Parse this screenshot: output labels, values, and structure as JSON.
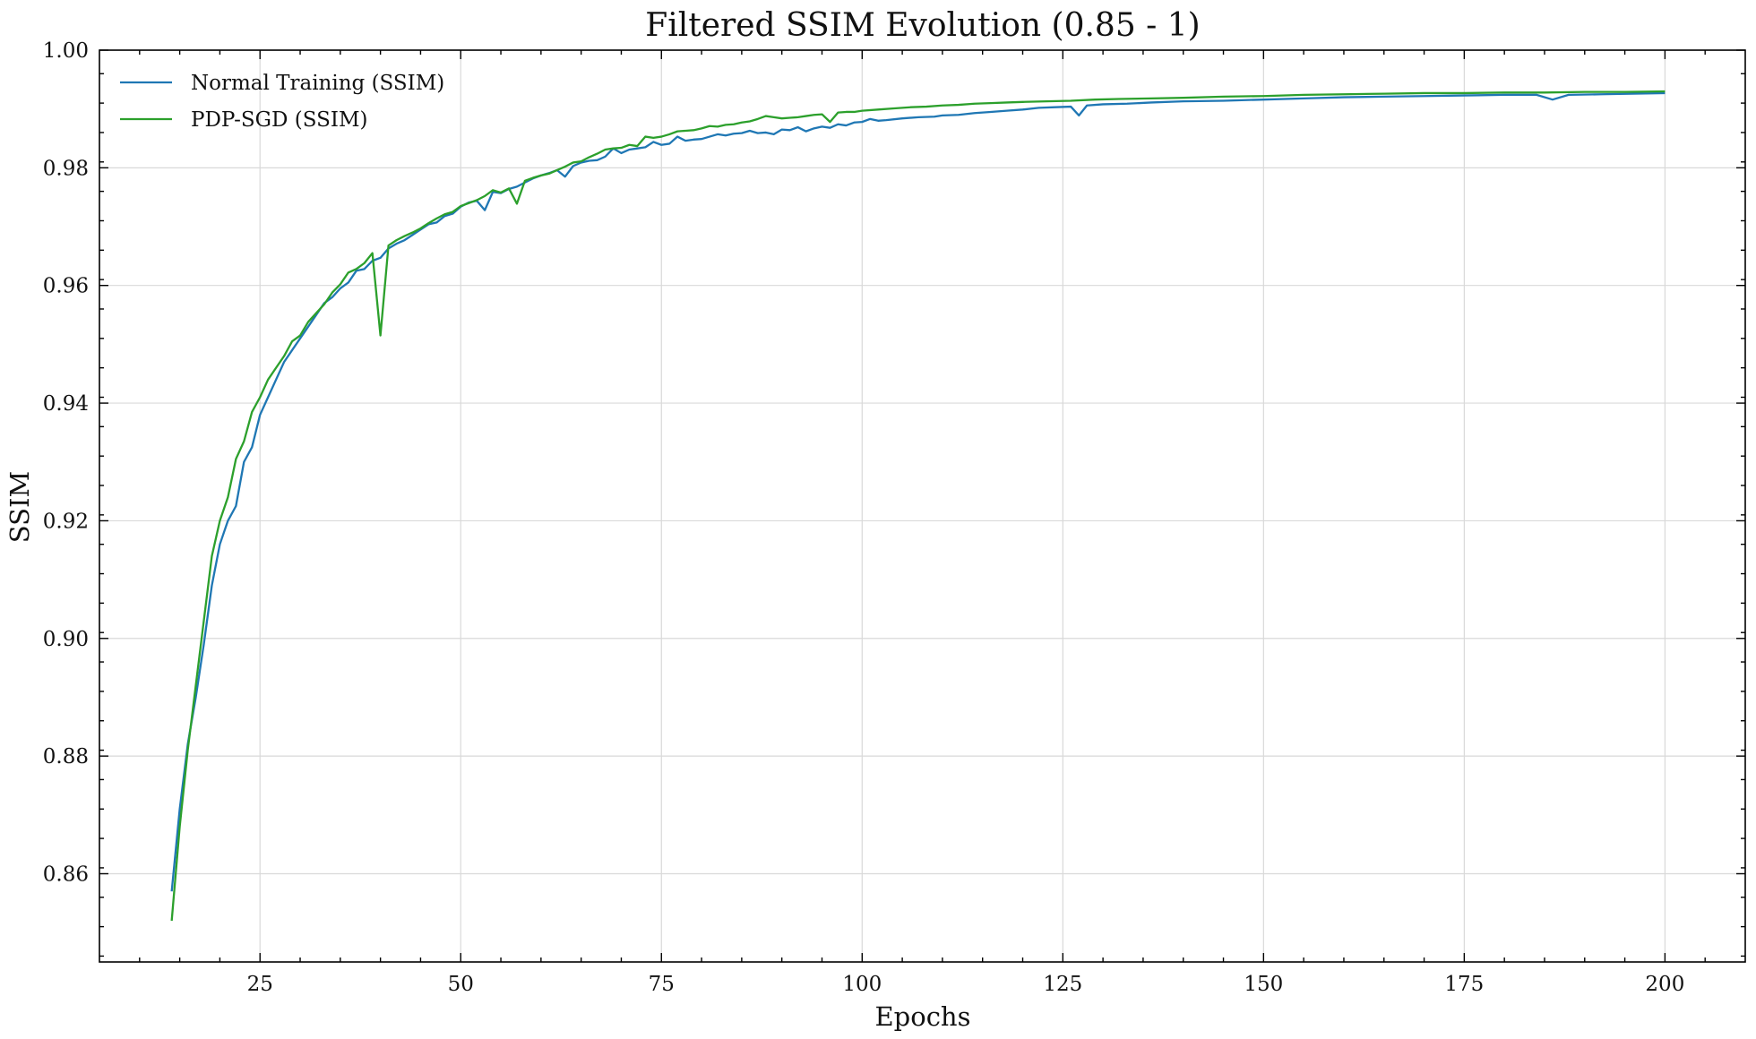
{
  "chart_data": {
    "type": "line",
    "title": "Filtered SSIM Evolution (0.85 - 1)",
    "xlabel": "Epochs",
    "ylabel": "SSIM",
    "xlim": [
      5,
      210
    ],
    "ylim": [
      0.845,
      1.0
    ],
    "xticks": [
      25,
      50,
      75,
      100,
      125,
      150,
      175,
      200
    ],
    "yticks": [
      0.86,
      0.88,
      0.9,
      0.92,
      0.94,
      0.96,
      0.98,
      1.0
    ],
    "xtick_labels": [
      "25",
      "50",
      "75",
      "100",
      "125",
      "150",
      "175",
      "200"
    ],
    "ytick_labels": [
      "0.86",
      "0.88",
      "0.90",
      "0.92",
      "0.94",
      "0.96",
      "0.98",
      "1.00"
    ],
    "grid": true,
    "legend_position": "top-left",
    "series": [
      {
        "name": "Normal Training (SSIM)",
        "color": "#1f77b4",
        "points": [
          [
            14,
            0.857
          ],
          [
            15,
            0.871
          ],
          [
            16,
            0.882
          ],
          [
            17,
            0.89
          ],
          [
            18,
            0.899
          ],
          [
            19,
            0.909
          ],
          [
            20,
            0.916
          ],
          [
            21,
            0.92
          ],
          [
            22,
            0.9225
          ],
          [
            23,
            0.93
          ],
          [
            24,
            0.9325
          ],
          [
            25,
            0.938
          ],
          [
            26,
            0.941
          ],
          [
            27,
            0.944
          ],
          [
            28,
            0.947
          ],
          [
            29,
            0.949
          ],
          [
            30,
            0.951
          ],
          [
            31,
            0.953
          ],
          [
            32,
            0.955
          ],
          [
            33,
            0.957
          ],
          [
            34,
            0.958
          ],
          [
            35,
            0.9595
          ],
          [
            36,
            0.9605
          ],
          [
            37,
            0.9625
          ],
          [
            38,
            0.9628
          ],
          [
            39,
            0.9642
          ],
          [
            40,
            0.9647
          ],
          [
            41,
            0.9663
          ],
          [
            42,
            0.9671
          ],
          [
            43,
            0.9677
          ],
          [
            44,
            0.9686
          ],
          [
            45,
            0.9695
          ],
          [
            46,
            0.9704
          ],
          [
            47,
            0.9707
          ],
          [
            48,
            0.9718
          ],
          [
            49,
            0.9722
          ],
          [
            50,
            0.9734
          ],
          [
            51,
            0.9741
          ],
          [
            52,
            0.9744
          ],
          [
            53,
            0.9728
          ],
          [
            54,
            0.9759
          ],
          [
            55,
            0.9757
          ],
          [
            56,
            0.9764
          ],
          [
            57,
            0.9768
          ],
          [
            58,
            0.9775
          ],
          [
            59,
            0.9782
          ],
          [
            60,
            0.9787
          ],
          [
            61,
            0.9791
          ],
          [
            62,
            0.9796
          ],
          [
            63,
            0.9785
          ],
          [
            64,
            0.9803
          ],
          [
            65,
            0.9809
          ],
          [
            66,
            0.9812
          ],
          [
            67,
            0.9813
          ],
          [
            68,
            0.9819
          ],
          [
            69,
            0.9833
          ],
          [
            70,
            0.9825
          ],
          [
            71,
            0.9831
          ],
          [
            72,
            0.9833
          ],
          [
            73,
            0.9835
          ],
          [
            74,
            0.9844
          ],
          [
            75,
            0.9839
          ],
          [
            76,
            0.9841
          ],
          [
            77,
            0.9853
          ],
          [
            78,
            0.9846
          ],
          [
            79,
            0.9848
          ],
          [
            80,
            0.9849
          ],
          [
            81,
            0.9853
          ],
          [
            82,
            0.9857
          ],
          [
            83,
            0.9855
          ],
          [
            84,
            0.9858
          ],
          [
            85,
            0.9859
          ],
          [
            86,
            0.9863
          ],
          [
            87,
            0.9859
          ],
          [
            88,
            0.986
          ],
          [
            89,
            0.9857
          ],
          [
            90,
            0.9865
          ],
          [
            91,
            0.9864
          ],
          [
            92,
            0.9869
          ],
          [
            93,
            0.9862
          ],
          [
            94,
            0.9867
          ],
          [
            95,
            0.987
          ],
          [
            96,
            0.9868
          ],
          [
            97,
            0.9874
          ],
          [
            98,
            0.9872
          ],
          [
            99,
            0.9877
          ],
          [
            100,
            0.9878
          ],
          [
            101,
            0.9883
          ],
          [
            102,
            0.988
          ],
          [
            103,
            0.9881
          ],
          [
            105,
            0.9884
          ],
          [
            107,
            0.9886
          ],
          [
            109,
            0.9887
          ],
          [
            110,
            0.9889
          ],
          [
            112,
            0.989
          ],
          [
            114,
            0.9893
          ],
          [
            116,
            0.9895
          ],
          [
            118,
            0.9897
          ],
          [
            120,
            0.9899
          ],
          [
            122,
            0.9902
          ],
          [
            124,
            0.9903
          ],
          [
            126,
            0.9904
          ],
          [
            127,
            0.9889
          ],
          [
            128,
            0.9906
          ],
          [
            130,
            0.9908
          ],
          [
            133,
            0.9909
          ],
          [
            136,
            0.9911
          ],
          [
            140,
            0.9913
          ],
          [
            145,
            0.9914
          ],
          [
            150,
            0.9916
          ],
          [
            155,
            0.9918
          ],
          [
            160,
            0.992
          ],
          [
            165,
            0.9921
          ],
          [
            170,
            0.9922
          ],
          [
            175,
            0.9923
          ],
          [
            180,
            0.9924
          ],
          [
            184,
            0.9924
          ],
          [
            186,
            0.9916
          ],
          [
            188,
            0.9924
          ],
          [
            192,
            0.9925
          ],
          [
            196,
            0.9926
          ],
          [
            200,
            0.9927
          ]
        ]
      },
      {
        "name": "PDP-SGD (SSIM)",
        "color": "#2ca02c",
        "points": [
          [
            14,
            0.852
          ],
          [
            15,
            0.868
          ],
          [
            16,
            0.881
          ],
          [
            17,
            0.892
          ],
          [
            18,
            0.903
          ],
          [
            19,
            0.914
          ],
          [
            20,
            0.92
          ],
          [
            21,
            0.924
          ],
          [
            22,
            0.9305
          ],
          [
            23,
            0.9335
          ],
          [
            24,
            0.9385
          ],
          [
            25,
            0.941
          ],
          [
            26,
            0.944
          ],
          [
            27,
            0.946
          ],
          [
            28,
            0.948
          ],
          [
            29,
            0.9505
          ],
          [
            30,
            0.9515
          ],
          [
            31,
            0.9538
          ],
          [
            32,
            0.9553
          ],
          [
            33,
            0.9568
          ],
          [
            34,
            0.9588
          ],
          [
            35,
            0.9602
          ],
          [
            36,
            0.9622
          ],
          [
            37,
            0.9628
          ],
          [
            38,
            0.9638
          ],
          [
            39,
            0.9655
          ],
          [
            40,
            0.9515
          ],
          [
            41,
            0.9668
          ],
          [
            42,
            0.9677
          ],
          [
            43,
            0.9684
          ],
          [
            44,
            0.969
          ],
          [
            45,
            0.9697
          ],
          [
            46,
            0.9706
          ],
          [
            47,
            0.9714
          ],
          [
            48,
            0.9721
          ],
          [
            49,
            0.9725
          ],
          [
            50,
            0.9735
          ],
          [
            51,
            0.974
          ],
          [
            52,
            0.9745
          ],
          [
            53,
            0.9752
          ],
          [
            54,
            0.9762
          ],
          [
            55,
            0.9758
          ],
          [
            56,
            0.9765
          ],
          [
            57,
            0.9739
          ],
          [
            58,
            0.9778
          ],
          [
            59,
            0.9783
          ],
          [
            60,
            0.9787
          ],
          [
            61,
            0.979
          ],
          [
            62,
            0.9796
          ],
          [
            63,
            0.9802
          ],
          [
            64,
            0.9809
          ],
          [
            65,
            0.9811
          ],
          [
            66,
            0.9818
          ],
          [
            67,
            0.9824
          ],
          [
            68,
            0.9831
          ],
          [
            69,
            0.9833
          ],
          [
            70,
            0.9834
          ],
          [
            71,
            0.9839
          ],
          [
            72,
            0.9837
          ],
          [
            73,
            0.9853
          ],
          [
            74,
            0.9851
          ],
          [
            75,
            0.9853
          ],
          [
            76,
            0.9857
          ],
          [
            77,
            0.9862
          ],
          [
            78,
            0.9863
          ],
          [
            79,
            0.9864
          ],
          [
            80,
            0.9867
          ],
          [
            81,
            0.9871
          ],
          [
            82,
            0.987
          ],
          [
            83,
            0.9873
          ],
          [
            84,
            0.9874
          ],
          [
            85,
            0.9877
          ],
          [
            86,
            0.9879
          ],
          [
            87,
            0.9883
          ],
          [
            88,
            0.9888
          ],
          [
            89,
            0.9886
          ],
          [
            90,
            0.9884
          ],
          [
            91,
            0.9885
          ],
          [
            92,
            0.9886
          ],
          [
            93,
            0.9888
          ],
          [
            94,
            0.989
          ],
          [
            95,
            0.9891
          ],
          [
            96,
            0.9878
          ],
          [
            97,
            0.9894
          ],
          [
            98,
            0.9895
          ],
          [
            99,
            0.9895
          ],
          [
            100,
            0.9897
          ],
          [
            102,
            0.9899
          ],
          [
            104,
            0.9901
          ],
          [
            106,
            0.9903
          ],
          [
            108,
            0.9904
          ],
          [
            110,
            0.9906
          ],
          [
            112,
            0.9907
          ],
          [
            114,
            0.9909
          ],
          [
            116,
            0.991
          ],
          [
            118,
            0.9911
          ],
          [
            120,
            0.9912
          ],
          [
            123,
            0.9913
          ],
          [
            126,
            0.9914
          ],
          [
            129,
            0.9916
          ],
          [
            132,
            0.9917
          ],
          [
            136,
            0.9918
          ],
          [
            140,
            0.9919
          ],
          [
            145,
            0.9921
          ],
          [
            150,
            0.9922
          ],
          [
            155,
            0.9924
          ],
          [
            160,
            0.9925
          ],
          [
            165,
            0.9926
          ],
          [
            170,
            0.9927
          ],
          [
            175,
            0.9927
          ],
          [
            180,
            0.9928
          ],
          [
            185,
            0.9928
          ],
          [
            190,
            0.9929
          ],
          [
            195,
            0.9929
          ],
          [
            200,
            0.993
          ]
        ]
      }
    ]
  }
}
